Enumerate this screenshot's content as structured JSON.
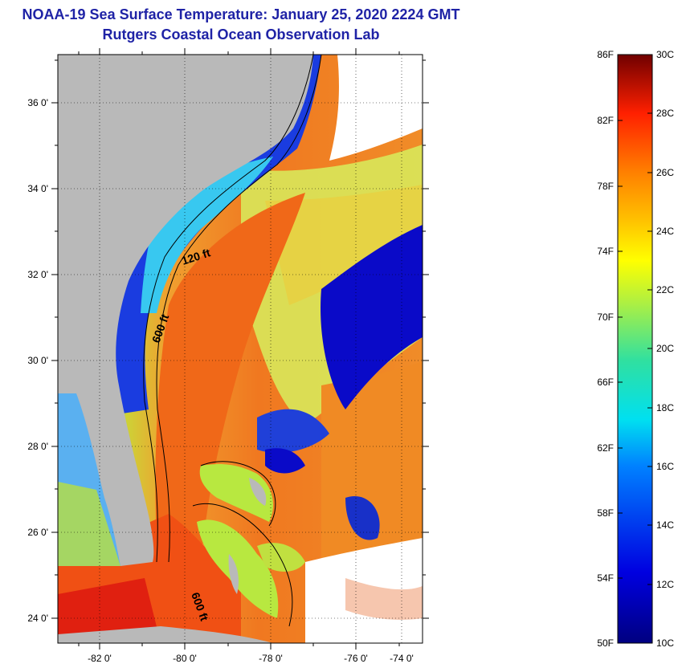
{
  "header": {
    "title_line1": "NOAA-19 Sea Surface Temperature:  January 25, 2020 2224 GMT",
    "title_line2": "Rutgers Coastal Ocean Observation Lab"
  },
  "map": {
    "lat_ticks": [
      "36 0'",
      "34 0'",
      "32 0'",
      "30 0'",
      "28 0'",
      "26 0'",
      "24 0'"
    ],
    "lon_ticks": [
      "-82 0'",
      "-80 0'",
      "-78 0'",
      "-76 0'",
      "-74 0'"
    ],
    "contour_labels": {
      "c120": "120 ft",
      "c600a": "600 ft",
      "c600b": "600 ft"
    },
    "colors": {
      "land": "#b9b9b9",
      "cloud": "#ffffff",
      "cold": "#0a0ac8",
      "gulf_stream": "#f05a14"
    }
  },
  "colorbar": {
    "fahrenheit": [
      "86F",
      "82F",
      "78F",
      "74F",
      "70F",
      "66F",
      "62F",
      "58F",
      "54F",
      "50F"
    ],
    "celsius": [
      "30C",
      "28C",
      "26C",
      "24C",
      "22C",
      "20C",
      "18C",
      "16C",
      "14C",
      "12C",
      "10C"
    ]
  }
}
